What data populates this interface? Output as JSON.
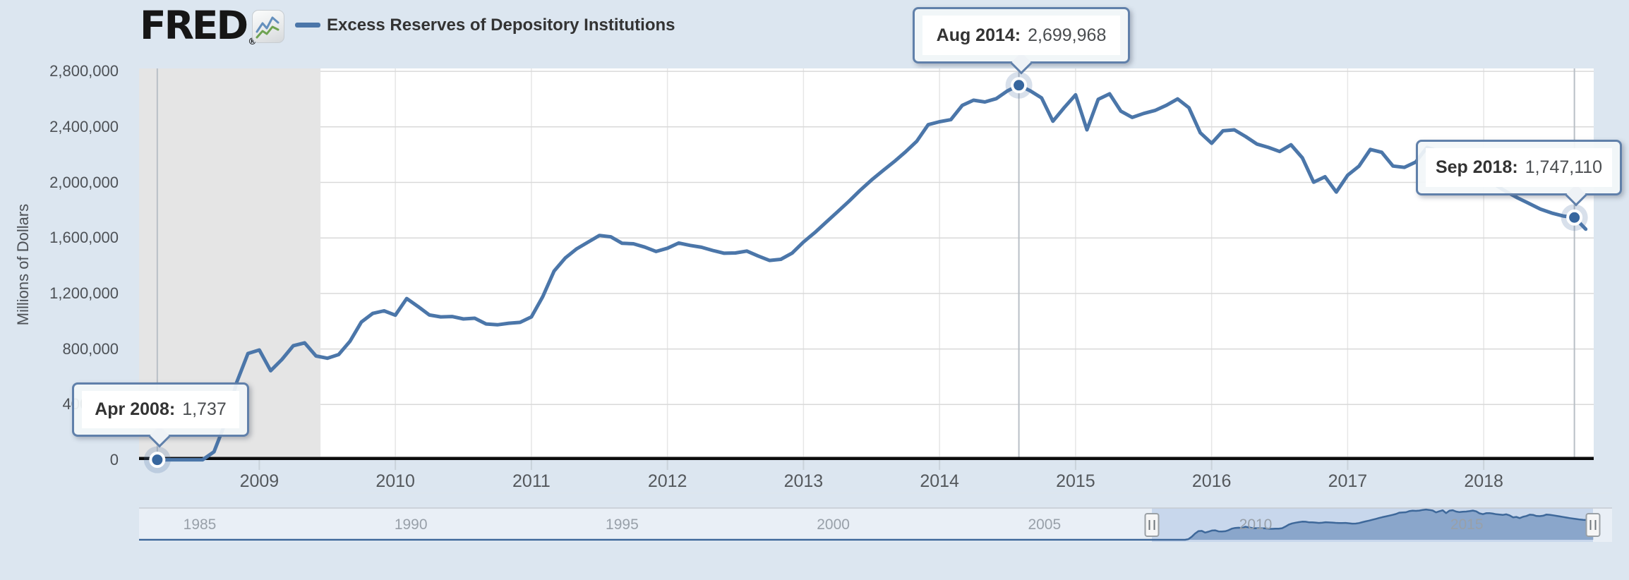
{
  "header": {
    "logo_text": "FRED",
    "logo_registered": "®",
    "legend_label": "Excess Reserves of Depository Institutions"
  },
  "y_axis": {
    "title": "Millions of Dollars",
    "ticks": [
      {
        "value": 0,
        "label": "0"
      },
      {
        "value": 400000,
        "label": "400,000"
      },
      {
        "value": 800000,
        "label": "800,000"
      },
      {
        "value": 1200000,
        "label": "1,200,000"
      },
      {
        "value": 1600000,
        "label": "1,600,000"
      },
      {
        "value": 2000000,
        "label": "2,000,000"
      },
      {
        "value": 2400000,
        "label": "2,400,000"
      },
      {
        "value": 2800000,
        "label": "2,800,000"
      }
    ]
  },
  "x_axis": {
    "years": [
      "2009",
      "2010",
      "2011",
      "2012",
      "2013",
      "2014",
      "2015",
      "2016",
      "2017",
      "2018"
    ]
  },
  "navigator": {
    "years": [
      "1985",
      "1990",
      "1995",
      "2000",
      "2005",
      "2010",
      "2015"
    ]
  },
  "tooltips": [
    {
      "date": "Apr 2008:",
      "value": "1,737"
    },
    {
      "date": "Aug 2014:",
      "value": "2,699,968"
    },
    {
      "date": "Sep 2018:",
      "value": "1,747,110"
    }
  ],
  "chart_data": {
    "type": "line",
    "title": "Excess Reserves of Depository Institutions",
    "ylabel": "Millions of Dollars",
    "ylim": [
      0,
      2800000
    ],
    "x_range": [
      "2008-02",
      "2018-11"
    ],
    "grid": true,
    "line_color": "#4b76a9",
    "recession_shading": {
      "start_year": 2008.12,
      "end_year": 2009.45
    },
    "highlights": [
      {
        "date_label": "Apr 2008",
        "value_label": "1,737",
        "year": 2008,
        "month": 4,
        "value": 1737
      },
      {
        "date_label": "Aug 2014",
        "value_label": "2,699,968",
        "year": 2014,
        "month": 8,
        "value": 2699968
      },
      {
        "date_label": "Sep 2018",
        "value_label": "1,747,110",
        "year": 2018,
        "month": 9,
        "value": 1747110
      }
    ],
    "series": [
      {
        "name": "Excess Reserves of Depository Institutions",
        "unit": "Millions of Dollars",
        "frequency": "monthly",
        "points": [
          [
            2008,
            4,
            1737
          ],
          [
            2008,
            5,
            1902
          ],
          [
            2008,
            6,
            1926
          ],
          [
            2008,
            7,
            1988
          ],
          [
            2008,
            8,
            1989
          ],
          [
            2008,
            9,
            59482
          ],
          [
            2008,
            10,
            267901
          ],
          [
            2008,
            11,
            559005
          ],
          [
            2008,
            12,
            767319
          ],
          [
            2009,
            1,
            793137
          ],
          [
            2009,
            2,
            643480
          ],
          [
            2009,
            3,
            724909
          ],
          [
            2009,
            4,
            823946
          ],
          [
            2009,
            5,
            844075
          ],
          [
            2009,
            6,
            749564
          ],
          [
            2009,
            7,
            733211
          ],
          [
            2009,
            8,
            759765
          ],
          [
            2009,
            9,
            855702
          ],
          [
            2009,
            10,
            994078
          ],
          [
            2009,
            11,
            1055932
          ],
          [
            2009,
            12,
            1075206
          ],
          [
            2010,
            1,
            1043559
          ],
          [
            2010,
            2,
            1163559
          ],
          [
            2010,
            3,
            1105905
          ],
          [
            2010,
            4,
            1044783
          ],
          [
            2010,
            5,
            1031247
          ],
          [
            2010,
            6,
            1033719
          ],
          [
            2010,
            7,
            1016561
          ],
          [
            2010,
            8,
            1021662
          ],
          [
            2010,
            9,
            980636
          ],
          [
            2010,
            10,
            974417
          ],
          [
            2010,
            11,
            985322
          ],
          [
            2010,
            12,
            991480
          ],
          [
            2011,
            1,
            1031103
          ],
          [
            2011,
            2,
            1177332
          ],
          [
            2011,
            3,
            1361019
          ],
          [
            2011,
            4,
            1456884
          ],
          [
            2011,
            5,
            1521840
          ],
          [
            2011,
            6,
            1570238
          ],
          [
            2011,
            7,
            1617613
          ],
          [
            2011,
            8,
            1608275
          ],
          [
            2011,
            9,
            1561375
          ],
          [
            2011,
            10,
            1557751
          ],
          [
            2011,
            11,
            1533907
          ],
          [
            2011,
            12,
            1502293
          ],
          [
            2012,
            1,
            1525755
          ],
          [
            2012,
            2,
            1563335
          ],
          [
            2012,
            3,
            1546242
          ],
          [
            2012,
            4,
            1533062
          ],
          [
            2012,
            5,
            1509522
          ],
          [
            2012,
            6,
            1489465
          ],
          [
            2012,
            7,
            1491977
          ],
          [
            2012,
            8,
            1505445
          ],
          [
            2012,
            9,
            1470087
          ],
          [
            2012,
            10,
            1437820
          ],
          [
            2012,
            11,
            1445807
          ],
          [
            2012,
            12,
            1490970
          ],
          [
            2013,
            1,
            1570296
          ],
          [
            2013,
            2,
            1638452
          ],
          [
            2013,
            3,
            1713351
          ],
          [
            2013,
            4,
            1788011
          ],
          [
            2013,
            5,
            1863222
          ],
          [
            2013,
            6,
            1943113
          ],
          [
            2013,
            7,
            2017030
          ],
          [
            2013,
            8,
            2084380
          ],
          [
            2013,
            9,
            2149374
          ],
          [
            2013,
            10,
            2219976
          ],
          [
            2013,
            11,
            2297161
          ],
          [
            2013,
            12,
            2415970
          ],
          [
            2014,
            1,
            2437337
          ],
          [
            2014,
            2,
            2451966
          ],
          [
            2014,
            3,
            2554752
          ],
          [
            2014,
            4,
            2591979
          ],
          [
            2014,
            5,
            2579659
          ],
          [
            2014,
            6,
            2603156
          ],
          [
            2014,
            7,
            2659972
          ],
          [
            2014,
            8,
            2699968
          ],
          [
            2014,
            9,
            2659480
          ],
          [
            2014,
            10,
            2609021
          ],
          [
            2014,
            11,
            2440482
          ],
          [
            2014,
            12,
            2538643
          ],
          [
            2015,
            1,
            2630616
          ],
          [
            2015,
            2,
            2378708
          ],
          [
            2015,
            3,
            2598973
          ],
          [
            2015,
            4,
            2637741
          ],
          [
            2015,
            5,
            2512640
          ],
          [
            2015,
            6,
            2468353
          ],
          [
            2015,
            7,
            2496454
          ],
          [
            2015,
            8,
            2518051
          ],
          [
            2015,
            9,
            2555171
          ],
          [
            2015,
            10,
            2601156
          ],
          [
            2015,
            11,
            2537615
          ],
          [
            2015,
            12,
            2357259
          ],
          [
            2016,
            1,
            2281389
          ],
          [
            2016,
            2,
            2371297
          ],
          [
            2016,
            3,
            2378561
          ],
          [
            2016,
            4,
            2330462
          ],
          [
            2016,
            5,
            2276072
          ],
          [
            2016,
            6,
            2252349
          ],
          [
            2016,
            7,
            2222563
          ],
          [
            2016,
            8,
            2271067
          ],
          [
            2016,
            9,
            2177106
          ],
          [
            2016,
            10,
            2001341
          ],
          [
            2016,
            11,
            2040461
          ],
          [
            2016,
            12,
            1930508
          ],
          [
            2017,
            1,
            2051863
          ],
          [
            2017,
            2,
            2117166
          ],
          [
            2017,
            3,
            2237111
          ],
          [
            2017,
            4,
            2217226
          ],
          [
            2017,
            5,
            2118166
          ],
          [
            2017,
            6,
            2108159
          ],
          [
            2017,
            7,
            2146963
          ],
          [
            2017,
            8,
            2252261
          ],
          [
            2017,
            9,
            2226786
          ],
          [
            2017,
            10,
            2183028
          ],
          [
            2017,
            11,
            2129386
          ],
          [
            2017,
            12,
            2079521
          ],
          [
            2018,
            1,
            2033037
          ],
          [
            2018,
            2,
            1983120
          ],
          [
            2018,
            3,
            1933142
          ],
          [
            2018,
            4,
            1888013
          ],
          [
            2018,
            5,
            1848227
          ],
          [
            2018,
            6,
            1807235
          ],
          [
            2018,
            7,
            1779609
          ],
          [
            2018,
            8,
            1758107
          ],
          [
            2018,
            9,
            1747110
          ],
          [
            2018,
            10,
            1663067
          ]
        ]
      }
    ],
    "navigator_range": [
      "1984",
      "2018"
    ]
  }
}
